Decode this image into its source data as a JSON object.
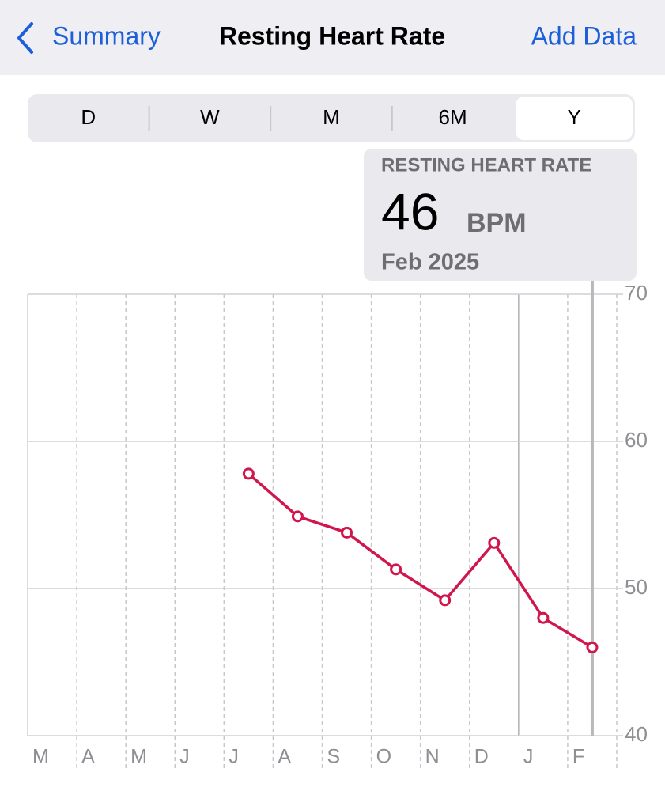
{
  "nav": {
    "back": "Summary",
    "title": "Resting Heart Rate",
    "action": "Add Data"
  },
  "segments": {
    "items": [
      "D",
      "W",
      "M",
      "6M",
      "Y"
    ],
    "selected": 4
  },
  "callout": {
    "label": "RESTING HEART RATE",
    "value": "46",
    "unit": "BPM",
    "date": "Feb 2025"
  },
  "chart_data": {
    "type": "line",
    "categories": [
      "M",
      "A",
      "M",
      "J",
      "J",
      "A",
      "S",
      "O",
      "N",
      "D",
      "J",
      "F"
    ],
    "series": [
      {
        "name": "Resting Heart Rate",
        "color": "#d0164c",
        "values": [
          null,
          null,
          null,
          null,
          57.8,
          54.9,
          53.8,
          51.3,
          49.2,
          53.1,
          48.0,
          46.0
        ]
      }
    ],
    "ylim": [
      40,
      70
    ],
    "yticks": [
      40,
      50,
      60,
      70
    ],
    "grid": true
  }
}
